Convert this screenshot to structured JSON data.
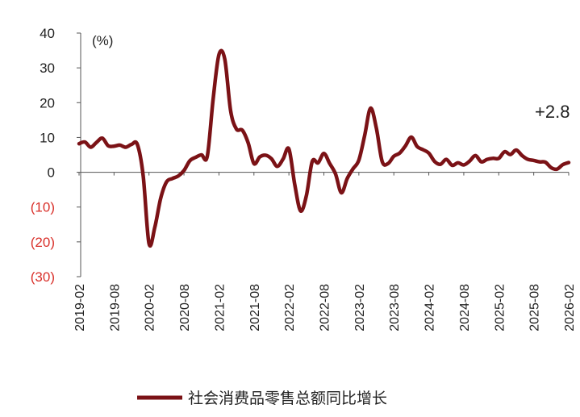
{
  "chart_data": {
    "type": "line",
    "ylabel_unit": "(%)",
    "ylim": [
      -30,
      40
    ],
    "yticks": [
      40,
      30,
      20,
      10,
      0,
      -10,
      -20,
      -30
    ],
    "ytick_labels": [
      "40",
      "30",
      "20",
      "10",
      "0",
      "(10)",
      "(20)",
      "(30)"
    ],
    "negative_tick_color": "#d9302a",
    "line_color": "#7b1216",
    "x_tick_labels": [
      "2019-02",
      "2019-08",
      "2020-02",
      "2020-08",
      "2021-02",
      "2021-08",
      "2022-02",
      "2022-08",
      "2023-02",
      "2023-08",
      "2024-02",
      "2024-08",
      "2025-02",
      "2025-08",
      "2026-02"
    ],
    "x_start": "2019-02",
    "series": [
      {
        "name": "社会消费品零售总额同比增长",
        "x": [
          "2019-02",
          "2019-03",
          "2019-04",
          "2019-05",
          "2019-06",
          "2019-07",
          "2019-08",
          "2019-09",
          "2019-10",
          "2019-11",
          "2019-12",
          "2020-01",
          "2020-02",
          "2020-03",
          "2020-04",
          "2020-05",
          "2020-06",
          "2020-07",
          "2020-08",
          "2020-09",
          "2020-10",
          "2020-11",
          "2020-12",
          "2021-01",
          "2021-02",
          "2021-03",
          "2021-04",
          "2021-05",
          "2021-06",
          "2021-07",
          "2021-08",
          "2021-09",
          "2021-10",
          "2021-11",
          "2021-12",
          "2022-01",
          "2022-02",
          "2022-03",
          "2022-04",
          "2022-05",
          "2022-06",
          "2022-07",
          "2022-08",
          "2022-09",
          "2022-10",
          "2022-11",
          "2022-12",
          "2023-01",
          "2023-02",
          "2023-03",
          "2023-04",
          "2023-05",
          "2023-06",
          "2023-07",
          "2023-08",
          "2023-09",
          "2023-10",
          "2023-11",
          "2023-12",
          "2024-01",
          "2024-02",
          "2024-03",
          "2024-04",
          "2024-05",
          "2024-06",
          "2024-07",
          "2024-08",
          "2024-09",
          "2024-10",
          "2024-11",
          "2024-12",
          "2025-01",
          "2025-02",
          "2025-03",
          "2025-04",
          "2025-05",
          "2025-06",
          "2025-07",
          "2025-08",
          "2025-09",
          "2025-10",
          "2025-11",
          "2025-12",
          "2026-01",
          "2026-02"
        ],
        "y": [
          8.2,
          8.7,
          7.2,
          8.6,
          9.8,
          7.6,
          7.5,
          7.8,
          7.2,
          8.0,
          8.0,
          -1.0,
          -20.5,
          -15.8,
          -7.5,
          -2.8,
          -1.8,
          -1.1,
          0.5,
          3.3,
          4.3,
          5.0,
          4.6,
          21.0,
          33.8,
          32.5,
          17.7,
          12.4,
          12.1,
          8.5,
          2.5,
          4.4,
          4.9,
          3.9,
          1.7,
          3.8,
          6.7,
          -3.5,
          -11.1,
          -6.7,
          3.1,
          2.7,
          5.4,
          2.5,
          -0.5,
          -5.9,
          -1.8,
          1.0,
          3.5,
          10.6,
          18.4,
          12.7,
          3.1,
          2.5,
          4.6,
          5.5,
          7.6,
          10.1,
          7.4,
          6.5,
          5.5,
          3.1,
          2.3,
          3.7,
          2.0,
          2.7,
          2.1,
          3.2,
          4.8,
          3.0,
          3.7,
          4.0,
          4.0,
          5.9,
          5.1,
          6.4,
          4.8,
          3.7,
          3.4,
          3.0,
          2.9,
          1.3,
          0.9,
          2.2,
          2.8
        ]
      }
    ],
    "annotation": "+2.8",
    "legend_label": "社会消费品零售总额同比增长",
    "legend_position": "bottom-center",
    "grid": false
  }
}
